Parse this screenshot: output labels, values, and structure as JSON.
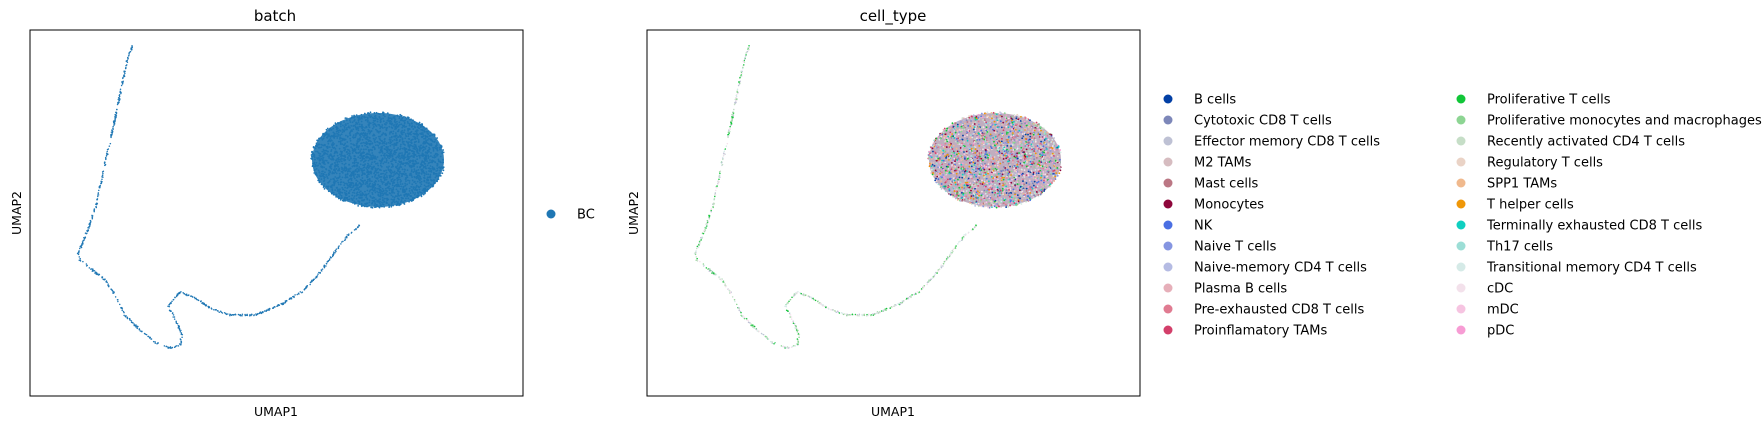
{
  "chart_data": [
    {
      "type": "scatter",
      "title": "batch",
      "xlabel": "UMAP1",
      "ylabel": "UMAP2",
      "grid": false,
      "xticks": "none",
      "yticks": "none",
      "legend_position": "right",
      "legend": [
        {
          "label": "BC",
          "color": "#1f77b4"
        }
      ]
    },
    {
      "type": "scatter",
      "title": "cell_type",
      "xlabel": "UMAP1",
      "ylabel": "UMAP2",
      "grid": false,
      "xticks": "none",
      "yticks": "none",
      "legend_position": "right",
      "legend_columns": 2,
      "legend": [
        {
          "label": "B cells",
          "color": "#023fa5"
        },
        {
          "label": "Cytotoxic CD8 T cells",
          "color": "#7d87b9"
        },
        {
          "label": "Effector memory CD8 T cells",
          "color": "#bec1d4"
        },
        {
          "label": "M2 TAMs",
          "color": "#d6bcc0"
        },
        {
          "label": "Mast cells",
          "color": "#bb7784"
        },
        {
          "label": "Monocytes",
          "color": "#8e063b"
        },
        {
          "label": "NK",
          "color": "#4a6fe3"
        },
        {
          "label": "Naive T cells",
          "color": "#8595e1"
        },
        {
          "label": "Naive-memory CD4 T cells",
          "color": "#b5bbe3"
        },
        {
          "label": "Plasma B cells",
          "color": "#e6afb9"
        },
        {
          "label": "Pre-exhausted CD8 T cells",
          "color": "#e07b91"
        },
        {
          "label": "Proinflamatory TAMs",
          "color": "#d33f6a"
        },
        {
          "label": "Proliferative T cells",
          "color": "#11c638"
        },
        {
          "label": "Proliferative monocytes and macrophages",
          "color": "#8dd593"
        },
        {
          "label": "Recently activated CD4 T cells",
          "color": "#c6dec7"
        },
        {
          "label": "Regulatory T cells",
          "color": "#ead3c6"
        },
        {
          "label": "SPP1 TAMs",
          "color": "#f0b98d"
        },
        {
          "label": "T helper cells",
          "color": "#ef9708"
        },
        {
          "label": "Terminally exhausted CD8 T cells",
          "color": "#0fcfc0"
        },
        {
          "label": "Th17 cells",
          "color": "#9cded6"
        },
        {
          "label": "Transitional memory CD4 T cells",
          "color": "#d5eae7"
        },
        {
          "label": "cDC",
          "color": "#f3e1eb"
        },
        {
          "label": "mDC",
          "color": "#f6c4e1"
        },
        {
          "label": "pDC",
          "color": "#f79cd4"
        }
      ]
    }
  ]
}
